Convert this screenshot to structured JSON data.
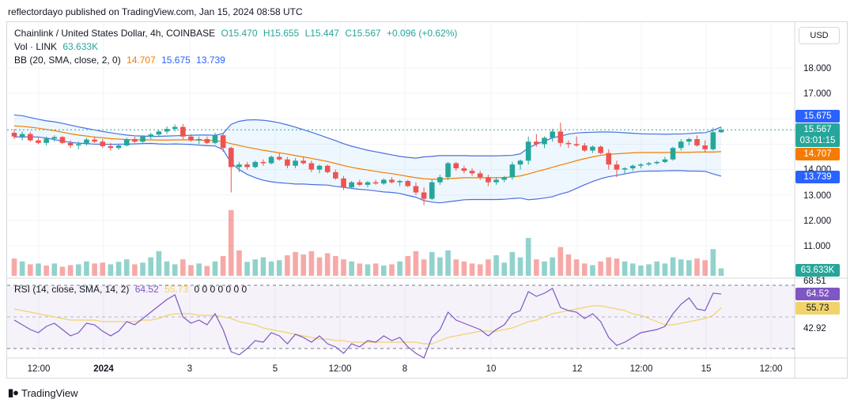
{
  "header_text": "reflectordayo published on TradingView.com, Jan 15, 2024 08:58 UTC",
  "legend": {
    "symbol": "Chainlink / United States Dollar, 4h, COINBASE",
    "open": "O15.470",
    "high": "H15.655",
    "low": "L15.447",
    "close": "C15.567",
    "change": "+0.096 (+0.62%)",
    "vol_label": "Vol · LINK",
    "vol_value": "63.633K",
    "bb_label": "BB (20, SMA, close, 2, 0)",
    "bb_basis": "14.707",
    "bb_upper": "15.675",
    "bb_lower": "13.739",
    "rsi_label": "RSI (14, close, SMA, 14, 2)",
    "rsi_value": "64.52",
    "rsi_ma": "55.73",
    "rsi_zeros": "0  0  0  0  0  0  0"
  },
  "currency_button": "USD",
  "price_axis": [
    "18.000",
    "17.000",
    "14.000",
    "13.000",
    "12.000",
    "11.000"
  ],
  "rsi_axis": [
    "68.51",
    "42.92"
  ],
  "time_axis": [
    "12:00",
    "2024",
    "3",
    "5",
    "12:00",
    "8",
    "10",
    "12",
    "12:00",
    "15",
    "12:00"
  ],
  "tags": {
    "upper": "15.675",
    "price": "15.567",
    "countdown": "03:01:15",
    "basis": "14.707",
    "lower": "13.739",
    "volume": "63.633K",
    "rsi": "64.52",
    "rsi_ma": "55.73"
  },
  "colors": {
    "up": "#26a69a",
    "down": "#ef5350",
    "bb_band": "#4a6fe0",
    "bb_basis": "#f57c00",
    "rsi": "#7e57c2",
    "rsi_ma": "#f2d36b"
  },
  "footer": "TradingView",
  "chart_data": {
    "type": "candlestick",
    "title": "Chainlink / United States Dollar, 4h, COINBASE",
    "y_range": [
      10.5,
      18.5
    ],
    "candles": [
      [
        15.45,
        15.6,
        15.2,
        15.3
      ],
      [
        15.3,
        15.5,
        15.15,
        15.4
      ],
      [
        15.4,
        15.48,
        15.1,
        15.15
      ],
      [
        15.15,
        15.25,
        15.0,
        15.05
      ],
      [
        15.05,
        15.3,
        14.95,
        15.22
      ],
      [
        15.22,
        15.35,
        15.1,
        15.28
      ],
      [
        15.28,
        15.32,
        15.0,
        15.05
      ],
      [
        15.05,
        15.15,
        14.85,
        14.95
      ],
      [
        14.95,
        15.1,
        14.8,
        15.0
      ],
      [
        15.0,
        15.25,
        14.95,
        15.18
      ],
      [
        15.18,
        15.3,
        15.05,
        15.1
      ],
      [
        15.1,
        15.2,
        14.85,
        14.92
      ],
      [
        14.92,
        15.05,
        14.75,
        14.85
      ],
      [
        14.85,
        15.0,
        14.78,
        14.95
      ],
      [
        14.95,
        15.25,
        14.9,
        15.2
      ],
      [
        15.2,
        15.3,
        15.05,
        15.1
      ],
      [
        15.1,
        15.35,
        15.05,
        15.3
      ],
      [
        15.3,
        15.45,
        15.2,
        15.38
      ],
      [
        15.38,
        15.55,
        15.3,
        15.5
      ],
      [
        15.5,
        15.7,
        15.4,
        15.6
      ],
      [
        15.6,
        15.78,
        15.5,
        15.68
      ],
      [
        15.68,
        15.8,
        15.2,
        15.3
      ],
      [
        15.3,
        15.4,
        15.1,
        15.15
      ],
      [
        15.15,
        15.3,
        15.0,
        15.2
      ],
      [
        15.2,
        15.3,
        15.0,
        15.05
      ],
      [
        15.05,
        15.45,
        15.0,
        15.35
      ],
      [
        15.35,
        15.4,
        14.7,
        14.85
      ],
      [
        14.85,
        14.9,
        13.1,
        14.1
      ],
      [
        14.1,
        14.3,
        13.9,
        14.2
      ],
      [
        14.2,
        14.3,
        14.0,
        14.1
      ],
      [
        14.1,
        14.35,
        14.05,
        14.3
      ],
      [
        14.3,
        14.4,
        14.15,
        14.25
      ],
      [
        14.25,
        14.55,
        14.2,
        14.5
      ],
      [
        14.5,
        14.65,
        14.35,
        14.4
      ],
      [
        14.4,
        14.5,
        14.05,
        14.15
      ],
      [
        14.15,
        14.45,
        14.05,
        14.35
      ],
      [
        14.35,
        14.5,
        14.2,
        14.25
      ],
      [
        14.25,
        14.35,
        13.9,
        14.0
      ],
      [
        14.0,
        14.2,
        13.85,
        14.15
      ],
      [
        14.15,
        14.2,
        13.85,
        13.9
      ],
      [
        13.9,
        14.0,
        13.6,
        13.65
      ],
      [
        13.65,
        13.75,
        13.2,
        13.3
      ],
      [
        13.3,
        13.55,
        13.25,
        13.5
      ],
      [
        13.5,
        13.6,
        13.35,
        13.4
      ],
      [
        13.4,
        13.55,
        13.3,
        13.5
      ],
      [
        13.5,
        13.6,
        13.4,
        13.45
      ],
      [
        13.45,
        13.65,
        13.4,
        13.6
      ],
      [
        13.6,
        13.7,
        13.45,
        13.5
      ],
      [
        13.5,
        13.6,
        13.35,
        13.55
      ],
      [
        13.55,
        13.6,
        13.3,
        13.35
      ],
      [
        13.35,
        13.5,
        13.0,
        13.1
      ],
      [
        13.1,
        13.3,
        12.6,
        12.85
      ],
      [
        12.85,
        13.6,
        12.8,
        13.5
      ],
      [
        13.5,
        13.8,
        13.4,
        13.7
      ],
      [
        13.7,
        14.3,
        13.6,
        14.25
      ],
      [
        14.25,
        14.3,
        13.95,
        14.05
      ],
      [
        14.05,
        14.15,
        13.85,
        13.95
      ],
      [
        13.95,
        14.05,
        13.75,
        13.85
      ],
      [
        13.85,
        13.95,
        13.6,
        13.7
      ],
      [
        13.7,
        13.8,
        13.35,
        13.5
      ],
      [
        13.5,
        13.7,
        13.4,
        13.6
      ],
      [
        13.6,
        13.75,
        13.5,
        13.7
      ],
      [
        13.7,
        14.3,
        13.6,
        14.2
      ],
      [
        14.2,
        14.4,
        14.0,
        14.35
      ],
      [
        14.35,
        15.3,
        14.2,
        15.1
      ],
      [
        15.1,
        15.4,
        14.9,
        15.0
      ],
      [
        15.0,
        15.3,
        14.85,
        15.25
      ],
      [
        15.25,
        15.6,
        15.1,
        15.5
      ],
      [
        15.5,
        15.85,
        14.9,
        15.05
      ],
      [
        15.05,
        15.15,
        14.85,
        15.0
      ],
      [
        15.0,
        15.3,
        14.9,
        14.95
      ],
      [
        14.95,
        15.05,
        14.7,
        14.75
      ],
      [
        14.75,
        14.95,
        14.65,
        14.9
      ],
      [
        14.9,
        14.95,
        14.6,
        14.65
      ],
      [
        14.65,
        14.8,
        14.0,
        14.2
      ],
      [
        14.2,
        14.35,
        13.7,
        14.0
      ],
      [
        14.0,
        14.1,
        13.85,
        14.05
      ],
      [
        14.05,
        14.2,
        13.95,
        14.15
      ],
      [
        14.15,
        14.25,
        14.05,
        14.2
      ],
      [
        14.2,
        14.3,
        14.15,
        14.25
      ],
      [
        14.25,
        14.35,
        14.2,
        14.3
      ],
      [
        14.3,
        14.5,
        14.25,
        14.4
      ],
      [
        14.4,
        14.9,
        14.35,
        14.85
      ],
      [
        14.85,
        15.2,
        14.75,
        15.1
      ],
      [
        15.1,
        15.25,
        14.95,
        15.2
      ],
      [
        15.2,
        15.35,
        14.9,
        14.95
      ],
      [
        14.95,
        15.15,
        14.7,
        14.8
      ],
      [
        14.8,
        15.65,
        14.75,
        15.47
      ],
      [
        15.47,
        15.655,
        15.447,
        15.567
      ]
    ],
    "volume": [
      {
        "v": 42,
        "up": false
      },
      {
        "v": 35,
        "up": true
      },
      {
        "v": 28,
        "up": false
      },
      {
        "v": 30,
        "up": true
      },
      {
        "v": 25,
        "up": false
      },
      {
        "v": 30,
        "up": true
      },
      {
        "v": 22,
        "up": false
      },
      {
        "v": 26,
        "up": false
      },
      {
        "v": 28,
        "up": true
      },
      {
        "v": 35,
        "up": true
      },
      {
        "v": 30,
        "up": false
      },
      {
        "v": 32,
        "up": false
      },
      {
        "v": 28,
        "up": true
      },
      {
        "v": 34,
        "up": true
      },
      {
        "v": 40,
        "up": true
      },
      {
        "v": 28,
        "up": false
      },
      {
        "v": 32,
        "up": true
      },
      {
        "v": 45,
        "up": true
      },
      {
        "v": 60,
        "up": true
      },
      {
        "v": 35,
        "up": true
      },
      {
        "v": 28,
        "up": true
      },
      {
        "v": 40,
        "up": false
      },
      {
        "v": 26,
        "up": false
      },
      {
        "v": 30,
        "up": true
      },
      {
        "v": 24,
        "up": false
      },
      {
        "v": 35,
        "up": true
      },
      {
        "v": 48,
        "up": false
      },
      {
        "v": 160,
        "up": false
      },
      {
        "v": 62,
        "up": false
      },
      {
        "v": 34,
        "up": true
      },
      {
        "v": 40,
        "up": true
      },
      {
        "v": 45,
        "up": true
      },
      {
        "v": 35,
        "up": true
      },
      {
        "v": 38,
        "up": true
      },
      {
        "v": 50,
        "up": false
      },
      {
        "v": 58,
        "up": false
      },
      {
        "v": 52,
        "up": false
      },
      {
        "v": 60,
        "up": false
      },
      {
        "v": 45,
        "up": false
      },
      {
        "v": 55,
        "up": false
      },
      {
        "v": 48,
        "up": false
      },
      {
        "v": 40,
        "up": false
      },
      {
        "v": 35,
        "up": true
      },
      {
        "v": 30,
        "up": false
      },
      {
        "v": 28,
        "up": true
      },
      {
        "v": 30,
        "up": false
      },
      {
        "v": 25,
        "up": true
      },
      {
        "v": 28,
        "up": false
      },
      {
        "v": 35,
        "up": true
      },
      {
        "v": 48,
        "up": false
      },
      {
        "v": 60,
        "up": false
      },
      {
        "v": 40,
        "up": false
      },
      {
        "v": 58,
        "up": true
      },
      {
        "v": 45,
        "up": true
      },
      {
        "v": 62,
        "up": true
      },
      {
        "v": 40,
        "up": false
      },
      {
        "v": 35,
        "up": false
      },
      {
        "v": 30,
        "up": false
      },
      {
        "v": 28,
        "up": false
      },
      {
        "v": 40,
        "up": false
      },
      {
        "v": 50,
        "up": true
      },
      {
        "v": 32,
        "up": true
      },
      {
        "v": 58,
        "up": true
      },
      {
        "v": 45,
        "up": true
      },
      {
        "v": 92,
        "up": true
      },
      {
        "v": 40,
        "up": false
      },
      {
        "v": 35,
        "up": true
      },
      {
        "v": 45,
        "up": true
      },
      {
        "v": 70,
        "up": false
      },
      {
        "v": 52,
        "up": false
      },
      {
        "v": 40,
        "up": false
      },
      {
        "v": 30,
        "up": false
      },
      {
        "v": 26,
        "up": true
      },
      {
        "v": 35,
        "up": false
      },
      {
        "v": 45,
        "up": false
      },
      {
        "v": 42,
        "up": false
      },
      {
        "v": 35,
        "up": true
      },
      {
        "v": 30,
        "up": true
      },
      {
        "v": 25,
        "up": true
      },
      {
        "v": 28,
        "up": true
      },
      {
        "v": 35,
        "up": true
      },
      {
        "v": 30,
        "up": true
      },
      {
        "v": 45,
        "up": true
      },
      {
        "v": 40,
        "up": true
      },
      {
        "v": 38,
        "up": true
      },
      {
        "v": 42,
        "up": false
      },
      {
        "v": 38,
        "up": false
      },
      {
        "v": 65,
        "up": true
      },
      {
        "v": 18,
        "up": true
      }
    ],
    "bb_upper": [
      16.15,
      16.12,
      16.05,
      15.98,
      15.92,
      15.88,
      15.82,
      15.75,
      15.68,
      15.62,
      15.56,
      15.5,
      15.45,
      15.4,
      15.36,
      15.33,
      15.32,
      15.31,
      15.31,
      15.32,
      15.33,
      15.34,
      15.35,
      15.36,
      15.36,
      15.35,
      15.42,
      15.78,
      15.9,
      15.95,
      15.96,
      15.94,
      15.9,
      15.84,
      15.76,
      15.67,
      15.57,
      15.47,
      15.36,
      15.25,
      15.14,
      15.02,
      14.92,
      14.84,
      14.76,
      14.7,
      14.64,
      14.58,
      14.52,
      14.48,
      14.45,
      14.5,
      14.52,
      14.55,
      14.55,
      14.55,
      14.55,
      14.54,
      14.54,
      14.54,
      14.54,
      14.55,
      14.56,
      14.62,
      14.85,
      15.0,
      15.12,
      15.25,
      15.32,
      15.4,
      15.44,
      15.46,
      15.47,
      15.48,
      15.48,
      15.47,
      15.45,
      15.43,
      15.41,
      15.4,
      15.4,
      15.39,
      15.4,
      15.4,
      15.42,
      15.44,
      15.45,
      15.55,
      15.675
    ],
    "bb_basis": [
      15.72,
      15.7,
      15.67,
      15.63,
      15.58,
      15.53,
      15.47,
      15.41,
      15.36,
      15.32,
      15.28,
      15.25,
      15.22,
      15.2,
      15.18,
      15.17,
      15.17,
      15.17,
      15.16,
      15.16,
      15.17,
      15.17,
      15.17,
      15.16,
      15.15,
      15.14,
      15.1,
      15.02,
      14.95,
      14.88,
      14.82,
      14.76,
      14.71,
      14.66,
      14.61,
      14.55,
      14.5,
      14.44,
      14.38,
      14.32,
      14.24,
      14.16,
      14.09,
      14.03,
      13.98,
      13.93,
      13.88,
      13.84,
      13.79,
      13.73,
      13.68,
      13.64,
      13.62,
      13.62,
      13.64,
      13.66,
      13.68,
      13.68,
      13.68,
      13.68,
      13.68,
      13.69,
      13.71,
      13.75,
      13.83,
      13.92,
      14.0,
      14.09,
      14.18,
      14.26,
      14.35,
      14.43,
      14.5,
      14.56,
      14.6,
      14.62,
      14.64,
      14.66,
      14.67,
      14.67,
      14.67,
      14.67,
      14.68,
      14.68,
      14.68,
      14.69,
      14.69,
      14.69,
      14.707
    ],
    "bb_lower": [
      15.29,
      15.28,
      15.29,
      15.28,
      15.24,
      15.18,
      15.12,
      15.07,
      15.04,
      15.02,
      15.0,
      15.0,
      14.99,
      15.0,
      15.0,
      15.01,
      15.02,
      15.03,
      15.01,
      15.0,
      15.01,
      15.0,
      14.99,
      14.96,
      14.94,
      14.93,
      14.78,
      14.26,
      14.0,
      13.81,
      13.68,
      13.58,
      13.52,
      13.48,
      13.46,
      13.43,
      13.43,
      13.41,
      13.4,
      13.39,
      13.34,
      13.3,
      13.26,
      13.22,
      13.2,
      13.16,
      13.12,
      13.1,
      13.06,
      12.98,
      12.91,
      12.78,
      12.72,
      12.69,
      12.73,
      12.77,
      12.81,
      12.82,
      12.82,
      12.82,
      12.82,
      12.83,
      12.86,
      12.88,
      12.81,
      12.84,
      12.88,
      12.93,
      13.04,
      13.12,
      13.26,
      13.4,
      13.53,
      13.64,
      13.72,
      13.77,
      13.83,
      13.89,
      13.93,
      13.94,
      13.94,
      13.95,
      13.96,
      13.96,
      13.94,
      13.94,
      13.93,
      13.83,
      13.739
    ],
    "rsi": [
      48,
      45,
      42,
      40,
      44,
      46,
      42,
      38,
      40,
      46,
      45,
      41,
      38,
      41,
      47,
      45,
      49,
      53,
      57,
      61,
      64,
      50,
      46,
      48,
      45,
      52,
      42,
      28,
      26,
      30,
      35,
      34,
      40,
      38,
      33,
      39,
      37,
      34,
      38,
      33,
      31,
      27,
      33,
      31,
      35,
      34,
      38,
      35,
      37,
      31,
      27,
      24,
      37,
      42,
      53,
      48,
      46,
      44,
      42,
      38,
      42,
      45,
      52,
      54,
      66,
      63,
      65,
      68,
      56,
      54,
      53,
      49,
      52,
      47,
      37,
      32,
      34,
      37,
      40,
      41,
      42,
      44,
      52,
      58,
      62,
      55,
      54,
      65,
      64.52
    ],
    "rsi_ma": [
      55,
      54,
      53,
      52,
      51,
      50,
      49,
      48,
      48,
      48,
      48,
      47,
      47,
      47,
      47,
      47,
      48,
      48,
      49,
      51,
      52,
      52,
      52,
      51,
      51,
      51,
      50,
      49,
      47,
      46,
      45,
      43,
      42,
      41,
      40,
      39,
      38,
      37,
      36,
      36,
      35,
      35,
      34,
      34,
      34,
      34,
      34,
      34,
      34,
      34,
      34,
      33,
      33,
      35,
      37,
      38,
      39,
      40,
      41,
      41,
      41,
      42,
      43,
      45,
      47,
      48,
      50,
      52,
      53,
      54,
      55,
      56,
      57,
      57,
      56,
      55,
      54,
      52,
      51,
      49,
      47,
      45,
      45,
      46,
      47,
      48,
      49,
      51,
      55.73
    ],
    "x_tick_labels": [
      "12:00",
      "2024",
      "3",
      "5",
      "12:00",
      "8",
      "10",
      "12",
      "12:00",
      "15",
      "12:00"
    ]
  }
}
